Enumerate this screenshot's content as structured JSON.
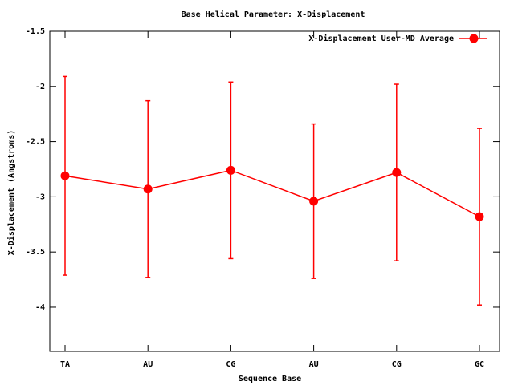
{
  "chart_data": {
    "type": "line",
    "title": "Base  Helical Parameter: X-Displacement",
    "xlabel": "Sequence Base",
    "ylabel": "X-Displacement (Angstroms)",
    "categories": [
      "TA",
      "AU",
      "CG",
      "AU",
      "CG",
      "GC"
    ],
    "series": [
      {
        "name": "X-Displacement User-MD Average",
        "color": "#ff0000",
        "values": [
          -2.81,
          -2.93,
          -2.76,
          -3.04,
          -2.78,
          -3.18
        ],
        "errors": [
          0.9,
          0.8,
          0.8,
          0.7,
          0.8,
          0.8
        ]
      }
    ],
    "ylim": [
      -4.4,
      -1.5
    ],
    "yticks": [
      -1.5,
      -2,
      -2.5,
      -3,
      -3.5,
      -4
    ],
    "legend": "upper right"
  }
}
